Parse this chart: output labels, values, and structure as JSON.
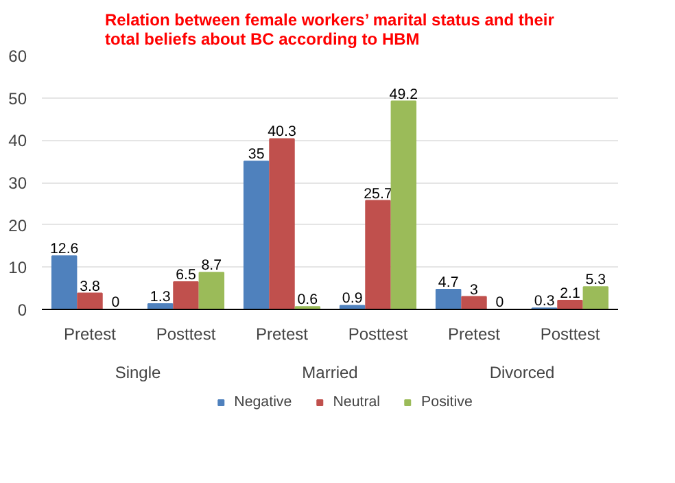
{
  "chart_data": {
    "type": "bar",
    "title": "Relation between female workers’ marital status and their total beliefs about BC according to HBM",
    "categories": [
      "Pretest",
      "Posttest",
      "Pretest",
      "Posttest",
      "Pretest",
      "Posttest"
    ],
    "annotations": [
      "Single",
      "Married",
      "Divorced"
    ],
    "series": [
      {
        "name": "Negative",
        "color": "#4f81bd",
        "values": [
          12.6,
          1.3,
          35,
          0.9,
          4.7,
          0.3
        ]
      },
      {
        "name": "Neutral",
        "color": "#c0504d",
        "values": [
          3.8,
          6.5,
          40.3,
          25.7,
          3,
          2.1
        ]
      },
      {
        "name": "Positive",
        "color": "#9bbb59",
        "values": [
          0,
          8.7,
          0.6,
          49.2,
          0,
          5.3
        ]
      }
    ],
    "ylim": [
      0,
      60
    ],
    "yticks": [
      0,
      10,
      20,
      30,
      40,
      50,
      60
    ],
    "grid": "y",
    "legend": "bottom",
    "data_labels": true
  }
}
